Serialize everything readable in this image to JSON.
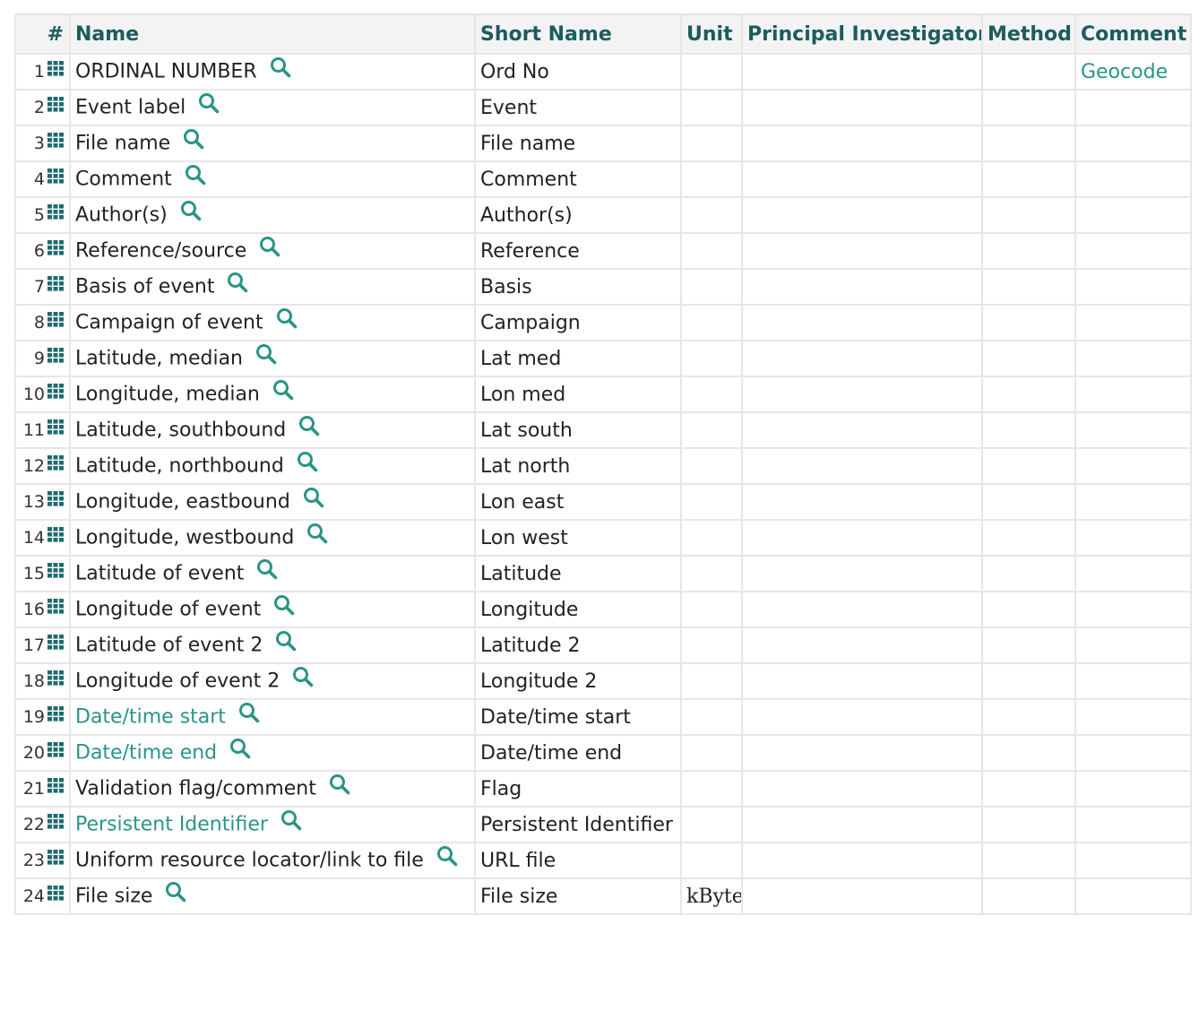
{
  "headers": {
    "num": "#",
    "name": "Name",
    "short_name": "Short Name",
    "unit": "Unit",
    "pi": "Principal Investigator",
    "method": "Method",
    "comment": "Comment"
  },
  "colors": {
    "link": "#2a9486",
    "header_text": "#1b5c60",
    "header_bg": "#f3f3f3",
    "icon": "#1e6b6f"
  },
  "rows": [
    {
      "num": "1",
      "name": "ORDINAL NUMBER",
      "short": "Ord No",
      "unit": "",
      "pi": "",
      "method": "",
      "comment": "Geocode",
      "name_link": false
    },
    {
      "num": "2",
      "name": "Event label",
      "short": "Event",
      "unit": "",
      "pi": "",
      "method": "",
      "comment": "",
      "name_link": false
    },
    {
      "num": "3",
      "name": "File name",
      "short": "File name",
      "unit": "",
      "pi": "",
      "method": "",
      "comment": "",
      "name_link": false
    },
    {
      "num": "4",
      "name": "Comment",
      "short": "Comment",
      "unit": "",
      "pi": "",
      "method": "",
      "comment": "",
      "name_link": false
    },
    {
      "num": "5",
      "name": "Author(s)",
      "short": "Author(s)",
      "unit": "",
      "pi": "",
      "method": "",
      "comment": "",
      "name_link": false
    },
    {
      "num": "6",
      "name": "Reference/source",
      "short": "Reference",
      "unit": "",
      "pi": "",
      "method": "",
      "comment": "",
      "name_link": false
    },
    {
      "num": "7",
      "name": "Basis of event",
      "short": "Basis",
      "unit": "",
      "pi": "",
      "method": "",
      "comment": "",
      "name_link": false
    },
    {
      "num": "8",
      "name": "Campaign of event",
      "short": "Campaign",
      "unit": "",
      "pi": "",
      "method": "",
      "comment": "",
      "name_link": false
    },
    {
      "num": "9",
      "name": "Latitude, median",
      "short": "Lat med",
      "unit": "",
      "pi": "",
      "method": "",
      "comment": "",
      "name_link": false
    },
    {
      "num": "10",
      "name": "Longitude, median",
      "short": "Lon med",
      "unit": "",
      "pi": "",
      "method": "",
      "comment": "",
      "name_link": false
    },
    {
      "num": "11",
      "name": "Latitude, southbound",
      "short": "Lat south",
      "unit": "",
      "pi": "",
      "method": "",
      "comment": "",
      "name_link": false
    },
    {
      "num": "12",
      "name": "Latitude, northbound",
      "short": "Lat north",
      "unit": "",
      "pi": "",
      "method": "",
      "comment": "",
      "name_link": false
    },
    {
      "num": "13",
      "name": "Longitude, eastbound",
      "short": "Lon east",
      "unit": "",
      "pi": "",
      "method": "",
      "comment": "",
      "name_link": false
    },
    {
      "num": "14",
      "name": "Longitude, westbound",
      "short": "Lon west",
      "unit": "",
      "pi": "",
      "method": "",
      "comment": "",
      "name_link": false
    },
    {
      "num": "15",
      "name": "Latitude of event",
      "short": "Latitude",
      "unit": "",
      "pi": "",
      "method": "",
      "comment": "",
      "name_link": false
    },
    {
      "num": "16",
      "name": "Longitude of event",
      "short": "Longitude",
      "unit": "",
      "pi": "",
      "method": "",
      "comment": "",
      "name_link": false
    },
    {
      "num": "17",
      "name": "Latitude of event 2",
      "short": "Latitude 2",
      "unit": "",
      "pi": "",
      "method": "",
      "comment": "",
      "name_link": false
    },
    {
      "num": "18",
      "name": "Longitude of event 2",
      "short": "Longitude 2",
      "unit": "",
      "pi": "",
      "method": "",
      "comment": "",
      "name_link": false
    },
    {
      "num": "19",
      "name": "Date/time start",
      "short": "Date/time start",
      "unit": "",
      "pi": "",
      "method": "",
      "comment": "",
      "name_link": true
    },
    {
      "num": "20",
      "name": "Date/time end",
      "short": "Date/time end",
      "unit": "",
      "pi": "",
      "method": "",
      "comment": "",
      "name_link": true
    },
    {
      "num": "21",
      "name": "Validation flag/comment",
      "short": "Flag",
      "unit": "",
      "pi": "",
      "method": "",
      "comment": "",
      "name_link": false
    },
    {
      "num": "22",
      "name": "Persistent Identifier",
      "short": "Persistent Identifier",
      "unit": "",
      "pi": "",
      "method": "",
      "comment": "",
      "name_link": true
    },
    {
      "num": "23",
      "name": "Uniform resource locator/link to file",
      "short": "URL file",
      "unit": "",
      "pi": "",
      "method": "",
      "comment": "",
      "name_link": false
    },
    {
      "num": "24",
      "name": "File size",
      "short": "File size",
      "unit": "kByte",
      "pi": "",
      "method": "",
      "comment": "",
      "name_link": false
    }
  ]
}
